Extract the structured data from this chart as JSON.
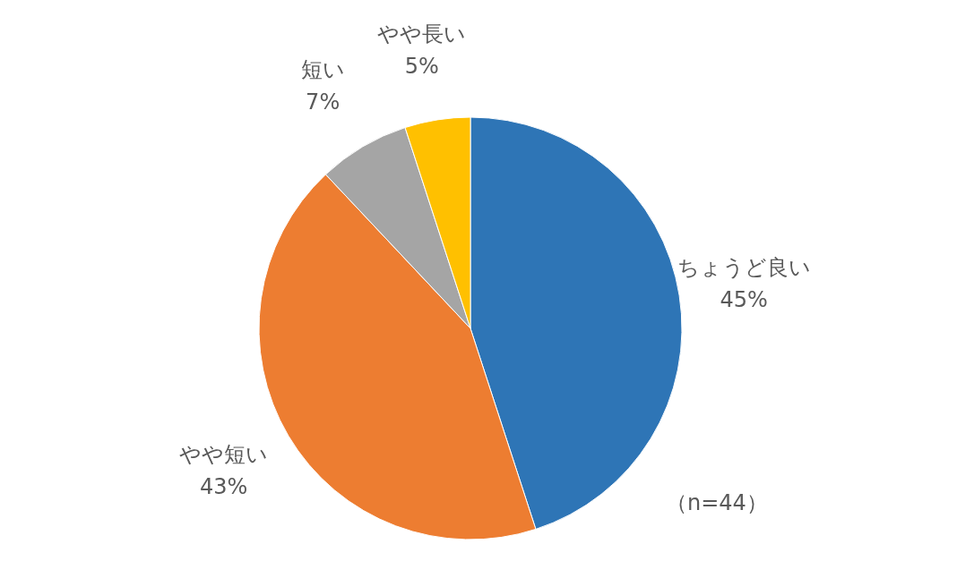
{
  "chart_data": {
    "type": "pie",
    "categories": [
      "ちょうど良い",
      "やや短い",
      "短い",
      "やや長い"
    ],
    "values": [
      45,
      43,
      7,
      5
    ],
    "value_labels": [
      "45%",
      "43%",
      "7%",
      "5%"
    ],
    "colors": [
      "#2e75b6",
      "#ed7d31",
      "#a5a5a5",
      "#ffc000"
    ],
    "annotations": [
      "（n=44）"
    ],
    "legend": false
  }
}
